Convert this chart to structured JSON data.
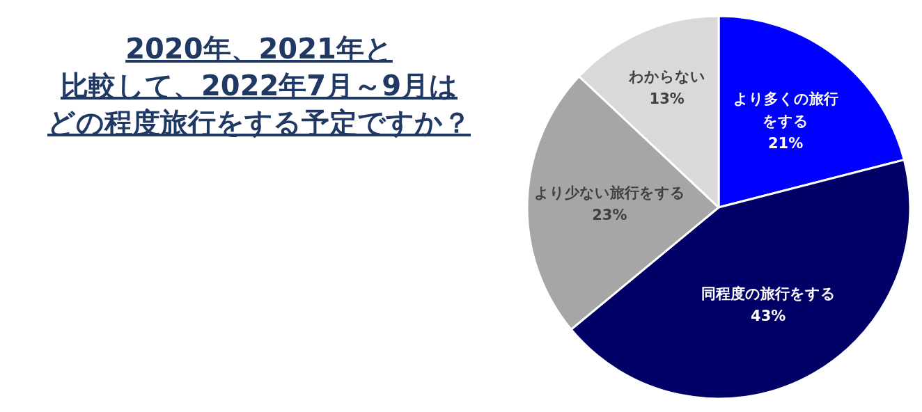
{
  "chart_data": {
    "type": "pie",
    "title": "2020年、2021年と比較して、2022年7月～9月はどの程度旅行をする予定ですか？",
    "categories": [
      "より多くの旅行をする",
      "同程度の旅行をする",
      "より少ない旅行をする",
      "わからない"
    ],
    "values": [
      21,
      43,
      23,
      13
    ],
    "value_labels": [
      "21%",
      "43%",
      "23%",
      "13%"
    ],
    "colors": [
      "#0000ff",
      "#000066",
      "#a6a6a6",
      "#d9d9d9"
    ]
  }
}
